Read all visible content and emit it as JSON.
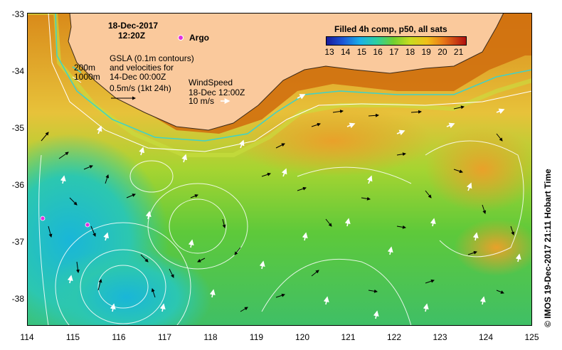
{
  "map": {
    "date": "18-Dec-2017",
    "time": "12:20Z",
    "legend": {
      "argo_label": "Argo",
      "depth_200": "200m",
      "depth_1000": "1000m",
      "gsla_line1": "GSLA (0.1m contours)",
      "gsla_line2": "and velocities for",
      "gsla_line3": "14-Dec 00:00Z",
      "gsla_scale": "0.5m/s (1kt 24h)",
      "wind_line1": "WindSpeed",
      "wind_line2": "18-Dec 12:00Z",
      "wind_scale": "10 m/s"
    },
    "colorbar": {
      "title": "Filled 4h comp, p50, all sats",
      "ticks": [
        "13",
        "14",
        "15",
        "16",
        "17",
        "18",
        "19",
        "20",
        "21"
      ]
    },
    "y_ticks": [
      "-33",
      "-34",
      "-35",
      "-36",
      "-37",
      "-38"
    ],
    "x_ticks": [
      "114",
      "115",
      "116",
      "117",
      "118",
      "119",
      "120",
      "121",
      "122",
      "123",
      "124",
      "125"
    ],
    "credit": "© IMOS 19-Dec-2017 21:11 Hobart Time",
    "colors": {
      "land": "#fac99c",
      "warm": "#d97a10",
      "mid": "#8fd12e",
      "cool": "#23c5b8"
    }
  }
}
